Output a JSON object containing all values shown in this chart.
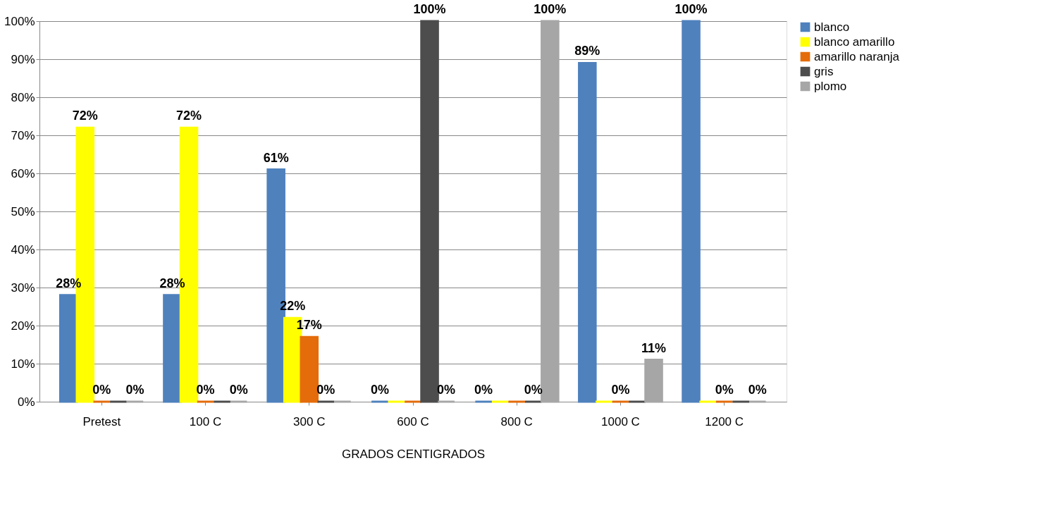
{
  "chart_data": {
    "type": "bar",
    "xlabel": "GRADOS CENTIGRADOS",
    "categories": [
      "Pretest",
      "100 C",
      "300 C",
      "600 C",
      "800 C",
      "1000 C",
      "1200 C"
    ],
    "series": [
      {
        "name": "blanco",
        "color": "#4f81bd",
        "values": [
          28,
          28,
          61,
          0,
          0,
          89,
          100
        ],
        "value_labels": [
          "28%",
          "28%",
          "61%",
          "0%",
          "0%",
          "89%",
          "100%"
        ]
      },
      {
        "name": "blanco amarillo",
        "color": "#ffff00",
        "values": [
          72,
          72,
          22,
          0,
          0,
          0,
          0
        ],
        "value_labels": [
          "72%",
          "72%",
          "22%",
          null,
          null,
          null,
          null
        ]
      },
      {
        "name": "amarillo naranja",
        "color": "#e46c0a",
        "values": [
          0,
          0,
          17,
          0,
          0,
          0,
          0
        ],
        "value_labels": [
          "0%",
          "0%",
          "17%",
          null,
          null,
          "0%",
          "0%"
        ]
      },
      {
        "name": "gris",
        "color": "#4d4d4d",
        "values": [
          0,
          0,
          0,
          100,
          0,
          0,
          0
        ],
        "value_labels": [
          null,
          null,
          "0%",
          "100%",
          "0%",
          null,
          null
        ]
      },
      {
        "name": "plomo",
        "color": "#a6a6a6",
        "values": [
          0,
          0,
          0,
          0,
          100,
          11,
          0
        ],
        "value_labels": [
          "0%",
          "0%",
          null,
          "0%",
          "100%",
          "11%",
          "0%"
        ]
      }
    ],
    "ylim": [
      0,
      100
    ],
    "yticks": [
      {
        "value": 0,
        "label": "0%"
      },
      {
        "value": 10,
        "label": "10%"
      },
      {
        "value": 20,
        "label": "20%"
      },
      {
        "value": 30,
        "label": "30%"
      },
      {
        "value": 40,
        "label": "40%"
      },
      {
        "value": 50,
        "label": "50%"
      },
      {
        "value": 60,
        "label": "60%"
      },
      {
        "value": 70,
        "label": "70%"
      },
      {
        "value": 80,
        "label": "80%"
      },
      {
        "value": 90,
        "label": "90%"
      },
      {
        "value": 100,
        "label": "100%"
      }
    ],
    "grid": "y",
    "legend": "right"
  }
}
